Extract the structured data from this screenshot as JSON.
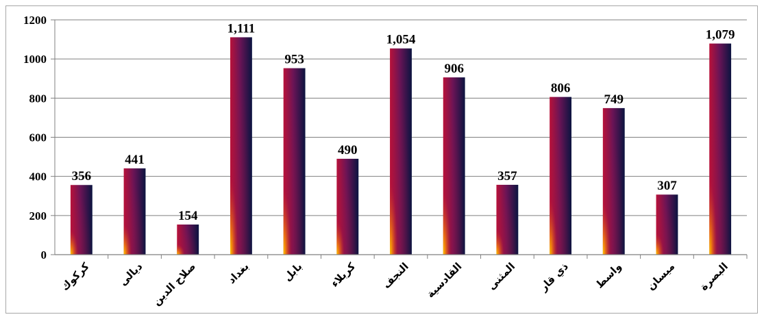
{
  "chart_data": {
    "type": "bar",
    "title": "",
    "xlabel": "",
    "ylabel": "",
    "ylim": [
      0,
      1200
    ],
    "yticks": [
      0,
      200,
      400,
      600,
      800,
      1000,
      1200
    ],
    "grid": true,
    "legend": "none",
    "categories": [
      "كركوك",
      "ديالى",
      "صلاح الدين",
      "بغداد",
      "بابل",
      "كربلاء",
      "النجف",
      "القادسية",
      "المثنى",
      "ذي قار",
      "واسط",
      "ميسان",
      "البصرة"
    ],
    "values": [
      356,
      441,
      154,
      1111,
      953,
      490,
      1054,
      906,
      357,
      806,
      749,
      307,
      1079
    ],
    "data_labels": [
      "356",
      "441",
      "154",
      "1,111",
      "953",
      "490",
      "1,054",
      "906",
      "357",
      "806",
      "749",
      "307",
      "1,079"
    ],
    "colors": {
      "bar_top": "#0b1440",
      "bar_mid": "#6a1456",
      "bar_low": "#b8123a",
      "bar_glow": "#ffcc00",
      "grid": "#7f7f7f",
      "axis": "#7f7f7f"
    }
  }
}
